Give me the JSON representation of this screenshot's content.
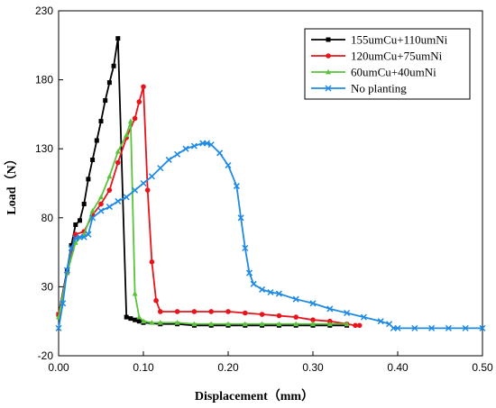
{
  "chart_data": {
    "type": "line",
    "xlabel": "Displacement（mm）",
    "ylabel": "Load（N）",
    "xlim": [
      0.0,
      0.5
    ],
    "ylim": [
      -20,
      230
    ],
    "xticks": [
      "0.00",
      "0.10",
      "0.20",
      "0.30",
      "0.40",
      "0.50"
    ],
    "yticks": [
      "-20",
      "30",
      "80",
      "130",
      "180",
      "230"
    ],
    "grid": false,
    "legend_position": "top-right",
    "series": [
      {
        "name": "155umCu+110umNi",
        "color": "#000000",
        "marker": "square",
        "x": [
          0.0,
          0.01,
          0.015,
          0.02,
          0.025,
          0.03,
          0.035,
          0.04,
          0.045,
          0.05,
          0.055,
          0.06,
          0.065,
          0.07,
          0.08,
          0.085,
          0.09,
          0.095,
          0.1,
          0.12,
          0.14,
          0.16,
          0.18,
          0.2,
          0.22,
          0.24,
          0.26,
          0.28,
          0.3,
          0.32,
          0.34
        ],
        "y": [
          10,
          42,
          60,
          75,
          78,
          90,
          108,
          122,
          136,
          150,
          165,
          178,
          190,
          210,
          8,
          7,
          6,
          5,
          4,
          3,
          3,
          2,
          2,
          2,
          2,
          2,
          2,
          2,
          2,
          2,
          2
        ]
      },
      {
        "name": "120umCu+75umNi",
        "color": "#e8141c",
        "marker": "circle",
        "x": [
          0.0,
          0.01,
          0.02,
          0.03,
          0.04,
          0.05,
          0.06,
          0.07,
          0.08,
          0.09,
          0.095,
          0.1,
          0.105,
          0.11,
          0.115,
          0.12,
          0.14,
          0.16,
          0.18,
          0.2,
          0.22,
          0.24,
          0.26,
          0.28,
          0.3,
          0.32,
          0.34,
          0.35,
          0.355
        ],
        "y": [
          10,
          40,
          68,
          70,
          82,
          90,
          100,
          120,
          138,
          152,
          164,
          175,
          100,
          48,
          20,
          12,
          12,
          12,
          12,
          12,
          11,
          10,
          9,
          8,
          6,
          5,
          3,
          2,
          2
        ]
      },
      {
        "name": "60umCu+40umNi",
        "color": "#5ac33c",
        "marker": "triangle",
        "x": [
          0.0,
          0.01,
          0.02,
          0.03,
          0.04,
          0.05,
          0.06,
          0.07,
          0.08,
          0.085,
          0.09,
          0.095,
          0.1,
          0.11,
          0.12,
          0.14,
          0.16,
          0.18,
          0.2,
          0.22,
          0.24,
          0.26,
          0.28,
          0.3,
          0.32,
          0.34
        ],
        "y": [
          8,
          40,
          62,
          68,
          85,
          95,
          110,
          128,
          140,
          150,
          25,
          8,
          5,
          4,
          4,
          4,
          3,
          3,
          3,
          3,
          3,
          3,
          3,
          3,
          3,
          3
        ]
      },
      {
        "name": "No planting",
        "color": "#1e8ae6",
        "marker": "x",
        "x": [
          0.0,
          0.005,
          0.01,
          0.015,
          0.02,
          0.025,
          0.03,
          0.035,
          0.04,
          0.05,
          0.06,
          0.07,
          0.08,
          0.09,
          0.1,
          0.11,
          0.12,
          0.13,
          0.14,
          0.15,
          0.16,
          0.17,
          0.175,
          0.18,
          0.19,
          0.2,
          0.21,
          0.215,
          0.22,
          0.225,
          0.23,
          0.24,
          0.25,
          0.26,
          0.28,
          0.3,
          0.32,
          0.34,
          0.36,
          0.38,
          0.39,
          0.395,
          0.4,
          0.42,
          0.44,
          0.46,
          0.48,
          0.5
        ],
        "y": [
          0,
          18,
          42,
          58,
          65,
          66,
          66,
          68,
          80,
          85,
          88,
          92,
          95,
          100,
          105,
          110,
          116,
          122,
          126,
          130,
          132,
          134,
          134,
          133,
          127,
          118,
          103,
          80,
          58,
          40,
          32,
          28,
          26,
          25,
          21,
          18,
          14,
          11,
          8,
          5,
          3,
          0,
          0,
          0,
          0,
          0,
          0,
          0
        ]
      }
    ]
  }
}
